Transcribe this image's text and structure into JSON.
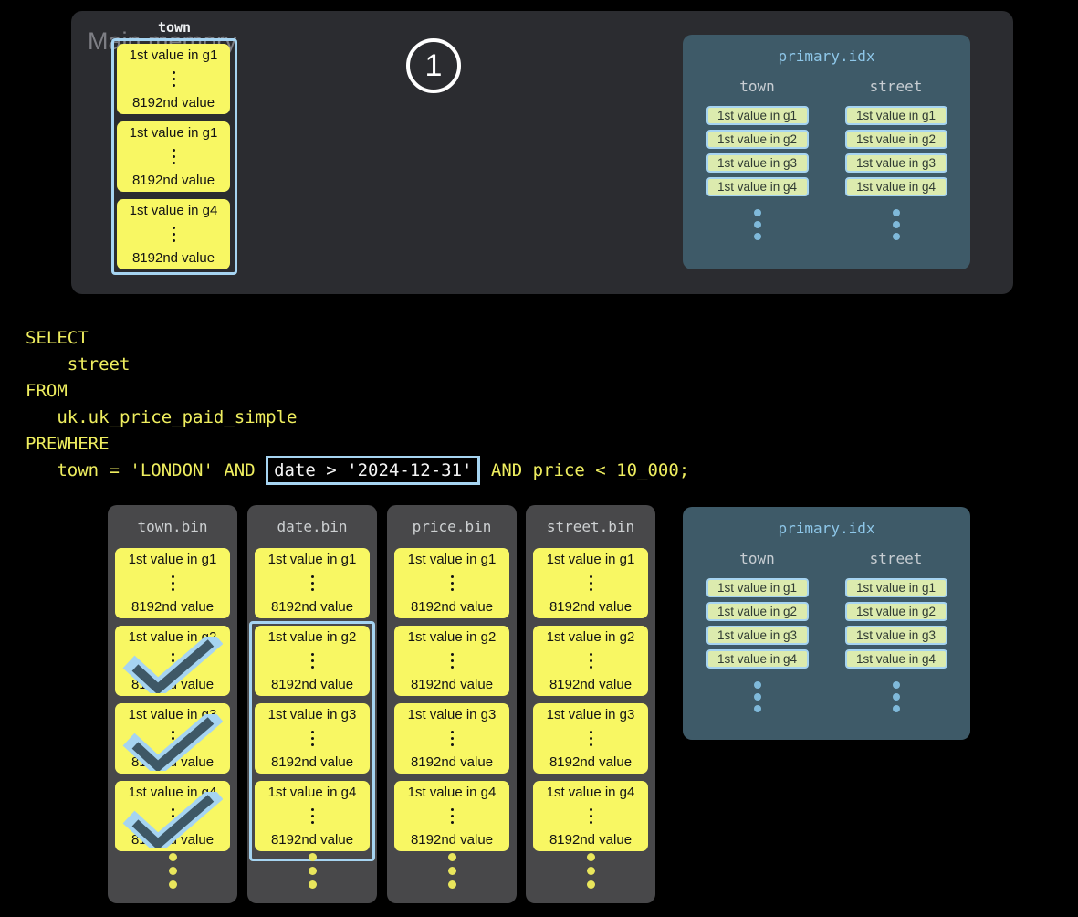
{
  "colors": {
    "background": "#000000",
    "memory_panel": "#2b2c30",
    "bin_panel": "#48484a",
    "index_panel": "#3e5a68",
    "accent_blue": "#a6d4f1",
    "index_title_blue": "#8ec7e9",
    "block_yellow": "#f8f763",
    "chip_green": "#dcebae",
    "sql_yellow": "#efee5f",
    "check_dark": "#3e5866"
  },
  "main_memory": {
    "label": "Main memory",
    "step_badge": "1",
    "column": {
      "header": "town",
      "blocks": [
        {
          "first": "1st value in g1",
          "last": "8192nd value"
        },
        {
          "first": "1st value in g1",
          "last": "8192nd value"
        },
        {
          "first": "1st value in g4",
          "last": "8192nd value"
        }
      ]
    }
  },
  "sql": {
    "lines": [
      "SELECT",
      "    street",
      "FROM",
      "   uk.uk_price_paid_simple",
      "PREWHERE"
    ],
    "last_line": {
      "pre": "   town = 'LONDON' AND ",
      "highlighted": "date > '2024-12-31'",
      "post": " AND price < 10_000;"
    }
  },
  "bin_files": [
    {
      "title": "town.bin",
      "blocks": [
        {
          "first": "1st value in g1",
          "last": "8192nd value",
          "checked": false
        },
        {
          "first": "1st value in g2",
          "last": "8192nd value",
          "checked": true
        },
        {
          "first": "1st value in g3",
          "last": "8192nd value",
          "checked": true
        },
        {
          "first": "1st value in g4",
          "last": "8192nd value",
          "checked": true
        }
      ],
      "highlight_blocks": null
    },
    {
      "title": "date.bin",
      "blocks": [
        {
          "first": "1st value in g1",
          "last": "8192nd value",
          "checked": false
        },
        {
          "first": "1st value in g2",
          "last": "8192nd value",
          "checked": false
        },
        {
          "first": "1st value in g3",
          "last": "8192nd value",
          "checked": false
        },
        {
          "first": "1st value in g4",
          "last": "8192nd value",
          "checked": false
        }
      ],
      "highlight_blocks": [
        1,
        3
      ]
    },
    {
      "title": "price.bin",
      "blocks": [
        {
          "first": "1st value in g1",
          "last": "8192nd value",
          "checked": false
        },
        {
          "first": "1st value in g2",
          "last": "8192nd value",
          "checked": false
        },
        {
          "first": "1st value in g3",
          "last": "8192nd value",
          "checked": false
        },
        {
          "first": "1st value in g4",
          "last": "8192nd value",
          "checked": false
        }
      ],
      "highlight_blocks": null
    },
    {
      "title": "street.bin",
      "blocks": [
        {
          "first": "1st value in g1",
          "last": "8192nd value",
          "checked": false
        },
        {
          "first": "1st value in g2",
          "last": "8192nd value",
          "checked": false
        },
        {
          "first": "1st value in g3",
          "last": "8192nd value",
          "checked": false
        },
        {
          "first": "1st value in g4",
          "last": "8192nd value",
          "checked": false
        }
      ],
      "highlight_blocks": null
    }
  ],
  "primary_index": {
    "title": "primary.idx",
    "columns": [
      {
        "header": "town",
        "entries": [
          "1st value in g1",
          "1st value in g2",
          "1st value in g3",
          "1st value in g4"
        ]
      },
      {
        "header": "street",
        "entries": [
          "1st value in g1",
          "1st value in g2",
          "1st value in g3",
          "1st value in g4"
        ]
      }
    ]
  }
}
